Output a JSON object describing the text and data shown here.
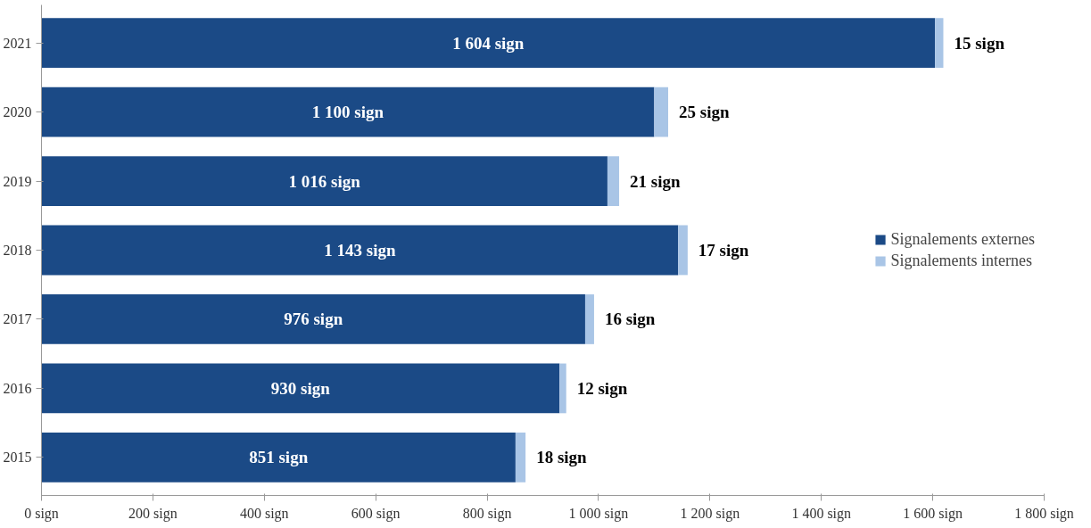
{
  "chart_data": {
    "type": "bar",
    "orientation": "horizontal",
    "stacked": true,
    "categories": [
      "2021",
      "2020",
      "2019",
      "2018",
      "2017",
      "2016",
      "2015"
    ],
    "series": [
      {
        "name": "Signalements externes",
        "color": "#1b4a86",
        "values": [
          1604,
          1100,
          1016,
          1143,
          976,
          930,
          851
        ],
        "value_labels": [
          "1 604 sign",
          "1 100 sign",
          "1 016 sign",
          "1 143 sign",
          "976 sign",
          "930 sign",
          "851 sign"
        ]
      },
      {
        "name": "Signalements internes",
        "color": "#a9c5e6",
        "values": [
          15,
          25,
          21,
          17,
          16,
          12,
          18
        ],
        "value_labels": [
          "15 sign",
          "25 sign",
          "21 sign",
          "17 sign",
          "16 sign",
          "12 sign",
          "18 sign"
        ]
      }
    ],
    "xlim": [
      0,
      1800
    ],
    "xticks": [
      {
        "value": 0,
        "label": "0 sign"
      },
      {
        "value": 200,
        "label": "200 sign"
      },
      {
        "value": 400,
        "label": "400 sign"
      },
      {
        "value": 600,
        "label": "600 sign"
      },
      {
        "value": 800,
        "label": "800 sign"
      },
      {
        "value": 1000,
        "label": "1 000 sign"
      },
      {
        "value": 1200,
        "label": "1 200 sign"
      },
      {
        "value": 1400,
        "label": "1 400 sign"
      },
      {
        "value": 1600,
        "label": "1 600 sign"
      },
      {
        "value": 1800,
        "label": "1 800 sign"
      }
    ],
    "grid": false,
    "legend": "right"
  }
}
